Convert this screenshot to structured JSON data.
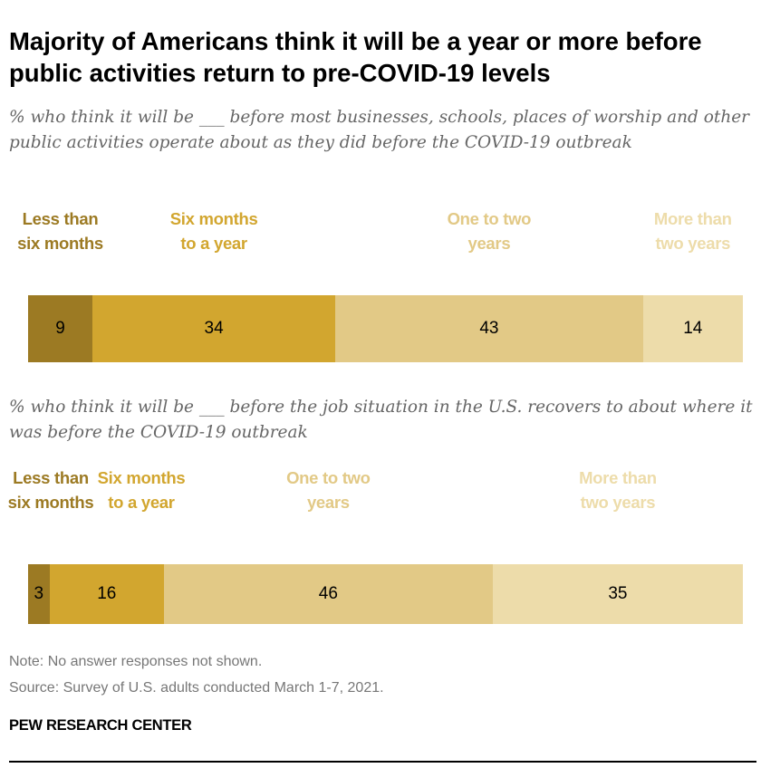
{
  "title": "Majority of Americans think it will be a year or more before public activities return to pre-COVID-19 levels",
  "colors": [
    "#9c7a23",
    "#d2a62f",
    "#e2c986",
    "#eddcaa"
  ],
  "chart_data": [
    {
      "type": "bar",
      "orientation": "horizontal-stacked",
      "subtitle": "% who think it will be ___ before most businesses, schools, places of worship and other public activities operate about as they did before the COVID-19 outbreak",
      "categories": [
        "Less than six months",
        "Six months to a year",
        "One to two years",
        "More than two years"
      ],
      "values": [
        9,
        34,
        43,
        14
      ]
    },
    {
      "type": "bar",
      "orientation": "horizontal-stacked",
      "subtitle": "% who think it will be ___ before the job situation in the U.S. recovers to about where it was before the COVID-19 outbreak",
      "categories": [
        "Less than six months",
        "Six months to a year",
        "One to two years",
        "More than two years"
      ],
      "values": [
        3,
        16,
        46,
        35
      ]
    }
  ],
  "note": "Note: No answer responses not shown.",
  "source": "Source: Survey of U.S. adults conducted March 1-7, 2021.",
  "brand": "PEW RESEARCH CENTER"
}
